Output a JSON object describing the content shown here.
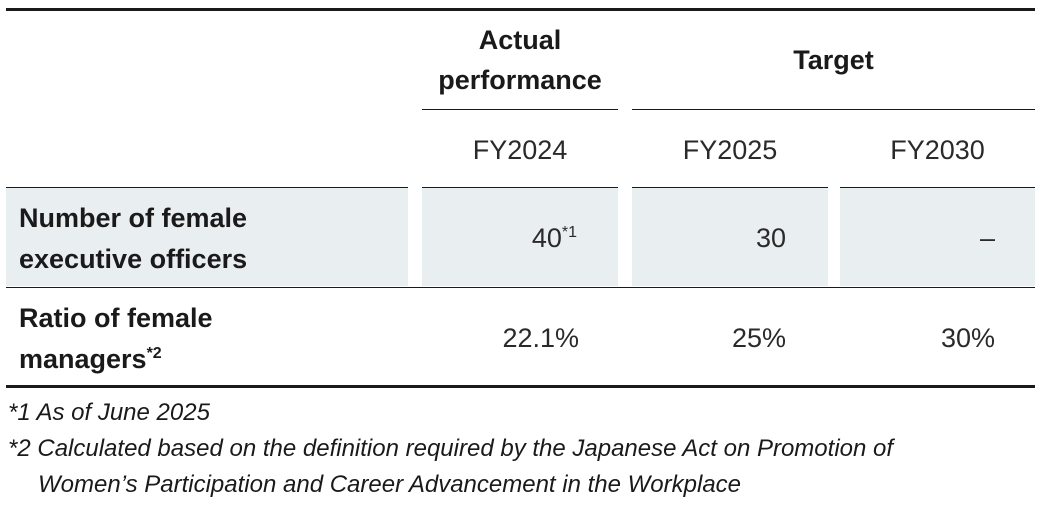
{
  "header": {
    "actual_performance": "Actual\nperformance",
    "target": "Target",
    "years": [
      "FY2024",
      "FY2025",
      "FY2030"
    ]
  },
  "rows": [
    {
      "label": "Number of female\nexecutive officers",
      "values": [
        "40",
        "30",
        "–"
      ],
      "value_note": "*1"
    },
    {
      "label": "Ratio of female\nmanagers",
      "label_note": "*2",
      "values": [
        "22.1%",
        "25%",
        "30%"
      ]
    }
  ],
  "footnotes": {
    "fn1": "*1 As of June 2025",
    "fn2_line1": "*2 Calculated based on the definition required by the Japanese Act on Promotion of",
    "fn2_line2": "Women’s Participation and Career Advancement in the Workplace"
  },
  "colors": {
    "row_highlight": "#e9eef0",
    "rule": "#1a1a1a"
  }
}
